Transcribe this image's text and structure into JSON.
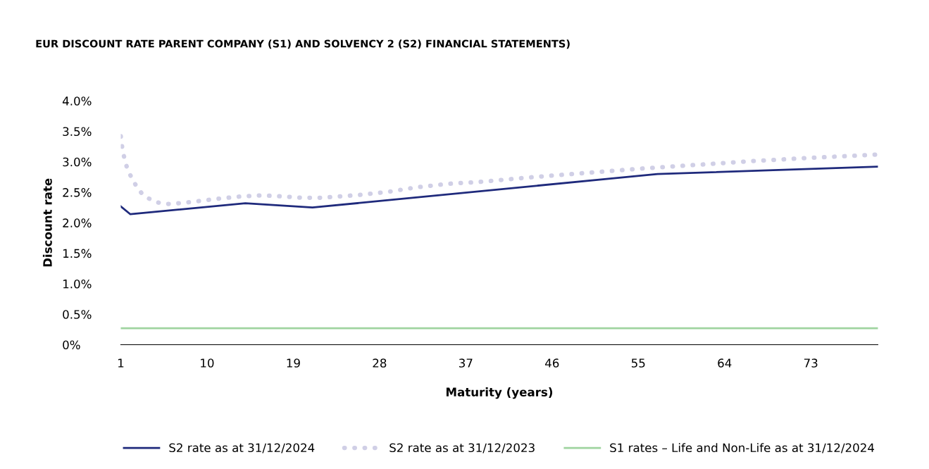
{
  "chart_data": {
    "type": "line",
    "title": "EUR DISCOUNT RATE PARENT COMPANY (S1) AND SOLVENCY 2 (S2) FINANCIAL STATEMENTS)",
    "xlabel": "Maturity (years)",
    "ylabel": "Discount rate",
    "xlim": [
      1,
      80
    ],
    "ylim": [
      0,
      4
    ],
    "xticks": [
      1,
      10,
      19,
      28,
      37,
      46,
      55,
      64,
      73
    ],
    "yticks": [
      {
        "value": 0,
        "label": "0%"
      },
      {
        "value": 0.5,
        "label": "0.5%"
      },
      {
        "value": 1,
        "label": "1.0%"
      },
      {
        "value": 1.5,
        "label": "1.5%"
      },
      {
        "value": 2,
        "label": "2.0%"
      },
      {
        "value": 2.5,
        "label": "2.5%"
      },
      {
        "value": 3,
        "label": "3.0%"
      },
      {
        "value": 3.5,
        "label": "3.5%"
      },
      {
        "value": 4,
        "label": "4.0%"
      }
    ],
    "grid": false,
    "legend": "bottom",
    "series": [
      {
        "name": "S2 rate as at 31/12/2024",
        "color": "#1f2a7c",
        "line_style": "solid",
        "x": [
          1,
          2,
          14,
          21,
          57,
          80
        ],
        "values": [
          2.27,
          2.14,
          2.32,
          2.25,
          2.8,
          2.92
        ]
      },
      {
        "name": "S2 rate as at 31/12/2023",
        "color": "#d0cfe6",
        "line_style": "dotted",
        "x": [
          1,
          1.2,
          1.4,
          1.6,
          1.9,
          2.3,
          2.7,
          3.2,
          3.9,
          4.7,
          5.5,
          6.4,
          8.3,
          10.9,
          13.4,
          15.7,
          18.1,
          19.9,
          21.9,
          23.6,
          26.1,
          29,
          31.8,
          35.2,
          38.4,
          44.1,
          49.7,
          55.4,
          61.1,
          66.7,
          72.4,
          80
        ],
        "values": [
          3.42,
          3.17,
          3.05,
          2.93,
          2.81,
          2.69,
          2.58,
          2.48,
          2.4,
          2.34,
          2.31,
          2.31,
          2.34,
          2.39,
          2.43,
          2.45,
          2.43,
          2.41,
          2.41,
          2.43,
          2.46,
          2.51,
          2.58,
          2.64,
          2.67,
          2.75,
          2.82,
          2.89,
          2.95,
          3.01,
          3.06,
          3.12
        ]
      },
      {
        "name": "S1 rates – Life and Non-Life as at 31/12/2024",
        "color": "#9fd4a0",
        "line_style": "solid",
        "x": [
          1,
          80
        ],
        "values": [
          0.27,
          0.27
        ]
      }
    ]
  }
}
